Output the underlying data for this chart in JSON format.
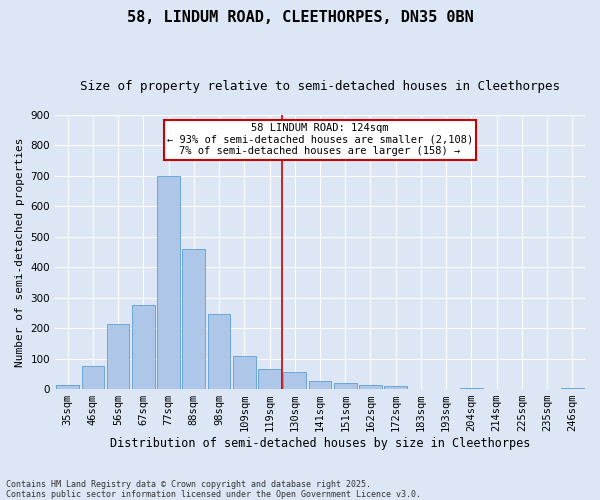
{
  "title": "58, LINDUM ROAD, CLEETHORPES, DN35 0BN",
  "subtitle": "Size of property relative to semi-detached houses in Cleethorpes",
  "xlabel": "Distribution of semi-detached houses by size in Cleethorpes",
  "ylabel": "Number of semi-detached properties",
  "bar_labels": [
    "35sqm",
    "46sqm",
    "56sqm",
    "67sqm",
    "77sqm",
    "88sqm",
    "98sqm",
    "109sqm",
    "119sqm",
    "130sqm",
    "141sqm",
    "151sqm",
    "162sqm",
    "172sqm",
    "183sqm",
    "193sqm",
    "204sqm",
    "214sqm",
    "225sqm",
    "235sqm",
    "246sqm"
  ],
  "bar_values": [
    15,
    75,
    215,
    275,
    700,
    460,
    245,
    110,
    65,
    55,
    25,
    20,
    15,
    10,
    0,
    0,
    5,
    0,
    0,
    0,
    2
  ],
  "bar_color": "#aec6e8",
  "bar_edge_color": "#5a9fd4",
  "vline_x_index": 8.5,
  "vline_color": "#cc0000",
  "annotation_lines": [
    "58 LINDUM ROAD: 124sqm",
    "← 93% of semi-detached houses are smaller (2,108)",
    "7% of semi-detached houses are larger (158) →"
  ],
  "annotation_box_color": "#cc0000",
  "bg_color": "#dce6f5",
  "grid_color": "#ffffff",
  "footer_line1": "Contains HM Land Registry data © Crown copyright and database right 2025.",
  "footer_line2": "Contains public sector information licensed under the Open Government Licence v3.0.",
  "ylim": [
    0,
    900
  ],
  "yticks": [
    0,
    100,
    200,
    300,
    400,
    500,
    600,
    700,
    800,
    900
  ],
  "title_fontsize": 11,
  "subtitle_fontsize": 9,
  "ylabel_fontsize": 8,
  "xlabel_fontsize": 8.5,
  "tick_fontsize": 7.5,
  "annotation_fontsize": 7.5,
  "footer_fontsize": 6
}
